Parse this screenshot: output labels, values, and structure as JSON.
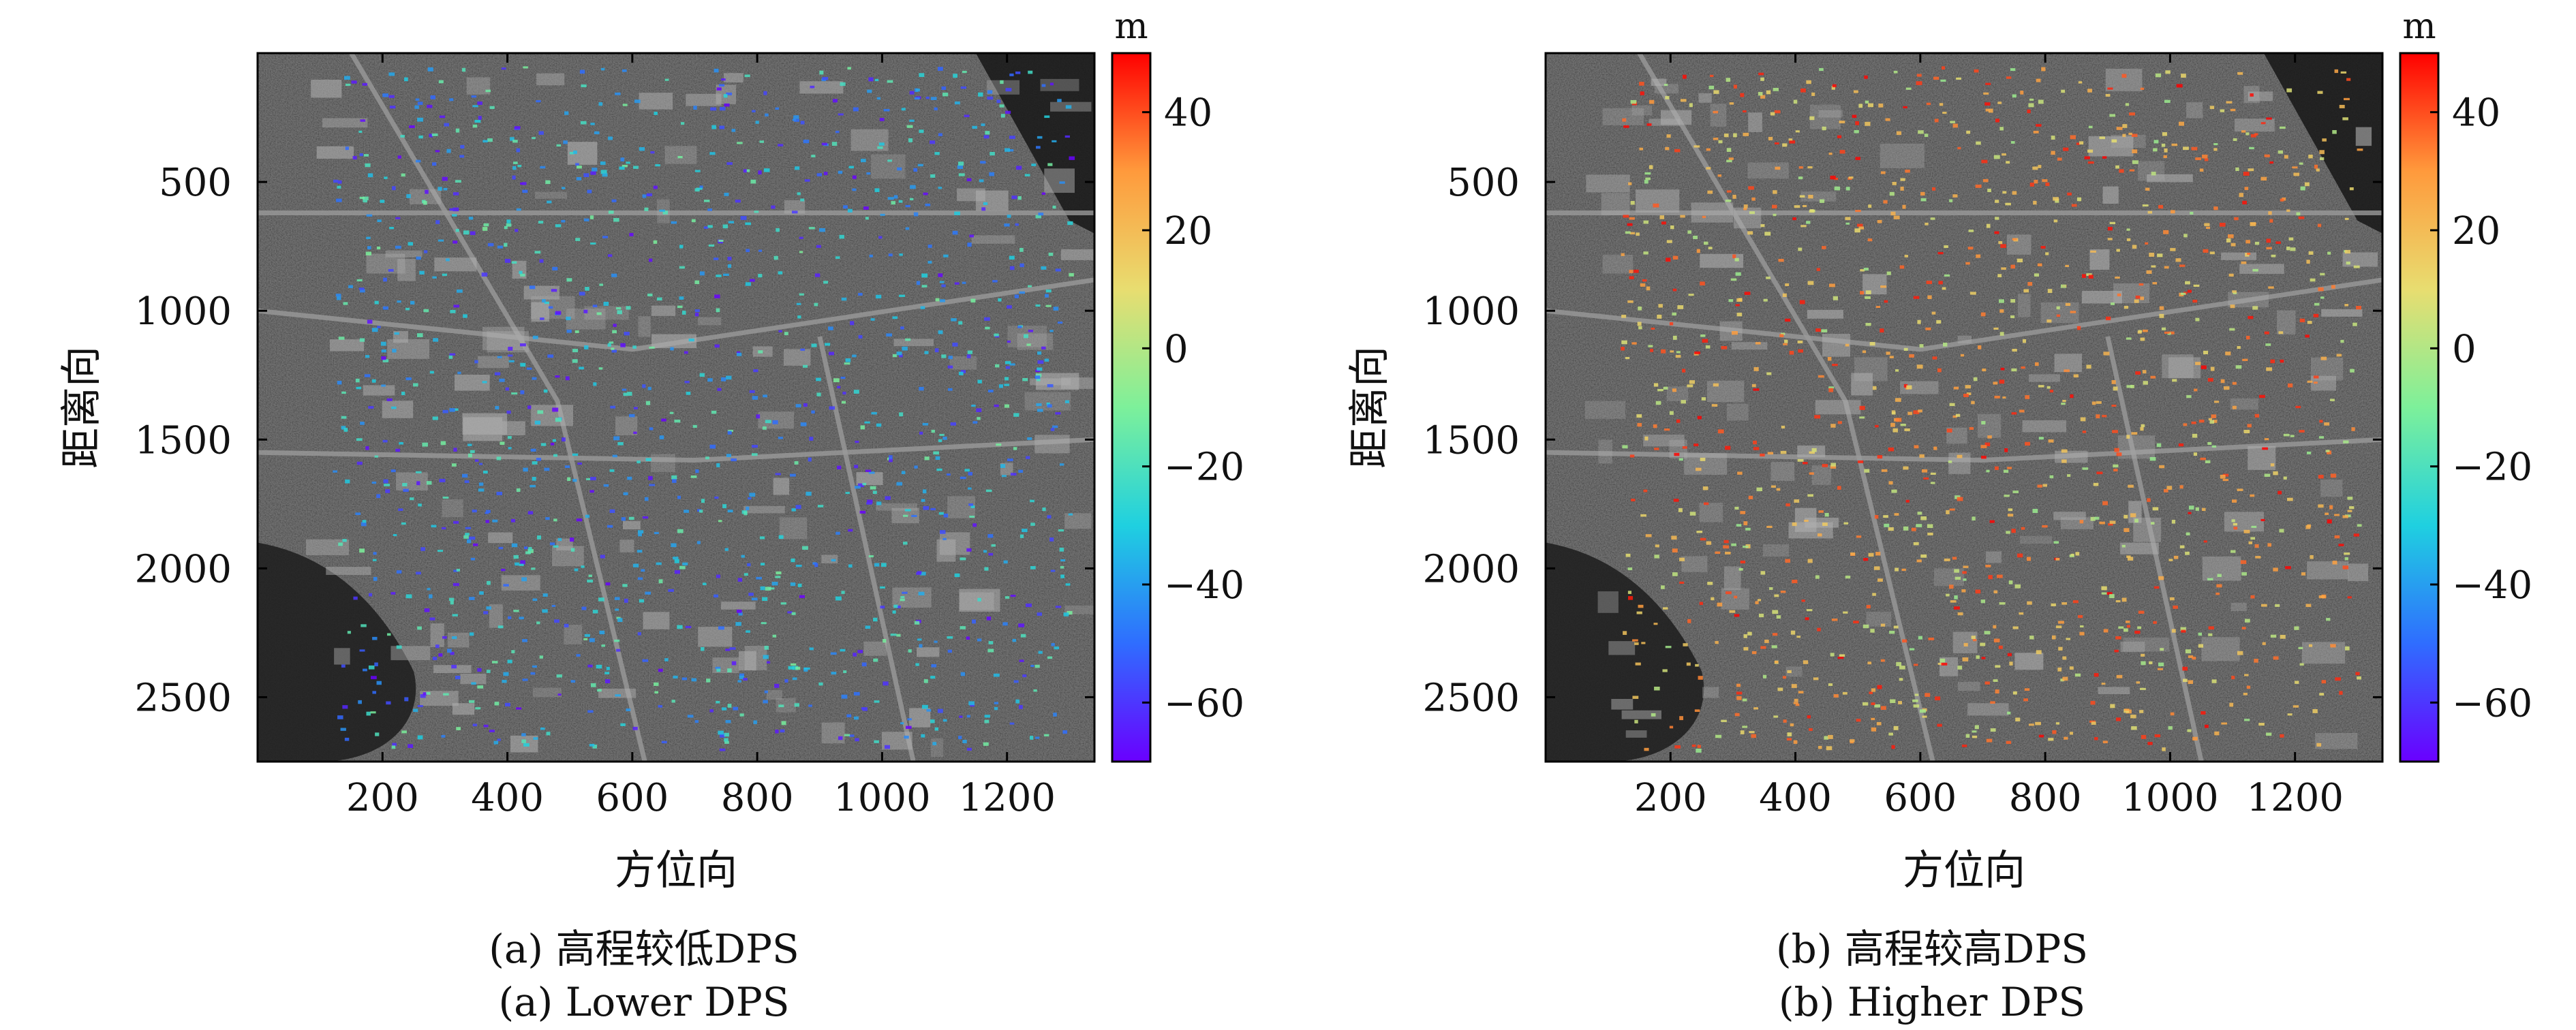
{
  "figure": {
    "panels": [
      {
        "caption_cn": "(a) 高程较低DPS",
        "caption_en": "(a) Lower DPS"
      },
      {
        "caption_cn": "(b) 高程较高DPS",
        "caption_en": "(b) Higher DPS"
      }
    ]
  },
  "chart_data": [
    {
      "type": "heatmap",
      "title": "",
      "xlabel": "方位向",
      "ylabel": "距离向",
      "xlim": [
        0,
        1340
      ],
      "ylim": [
        2750,
        0
      ],
      "x_ticks": [
        200,
        400,
        600,
        800,
        1000,
        1200
      ],
      "y_ticks": [
        500,
        1000,
        1500,
        2000,
        2500
      ],
      "colorbar": {
        "label": "m",
        "range": [
          -70,
          50
        ],
        "ticks": [
          40,
          20,
          0,
          -20,
          -40,
          -60
        ],
        "colormap": "rainbow",
        "colors": [
          "#6a00ff",
          "#2f6dff",
          "#1fd0e0",
          "#7df09a",
          "#e8dd70",
          "#ff9a3c",
          "#ff0000"
        ]
      },
      "dps_elevation_range": [
        -70,
        -10
      ],
      "background": "grayscale SAR amplitude image"
    },
    {
      "type": "heatmap",
      "title": "",
      "xlabel": "方位向",
      "ylabel": "距离向",
      "xlim": [
        0,
        1340
      ],
      "ylim": [
        2750,
        0
      ],
      "x_ticks": [
        200,
        400,
        600,
        800,
        1000,
        1200
      ],
      "y_ticks": [
        500,
        1000,
        1500,
        2000,
        2500
      ],
      "colorbar": {
        "label": "m",
        "range": [
          -70,
          50
        ],
        "ticks": [
          40,
          20,
          0,
          -20,
          -40,
          -60
        ],
        "colormap": "rainbow",
        "colors": [
          "#6a00ff",
          "#2f6dff",
          "#1fd0e0",
          "#7df09a",
          "#e8dd70",
          "#ff9a3c",
          "#ff0000"
        ]
      },
      "dps_elevation_range": [
        -5,
        50
      ],
      "background": "grayscale SAR amplitude image"
    }
  ]
}
